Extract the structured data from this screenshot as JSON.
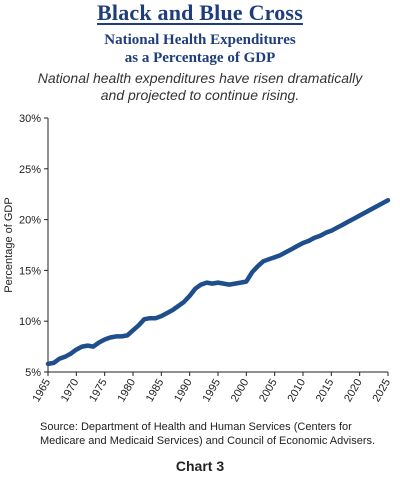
{
  "header": {
    "title": "Black and Blue Cross",
    "subtitle_line1": "National Health Expenditures",
    "subtitle_line2": "as a Percentage of GDP"
  },
  "caption": {
    "line1": "National health expenditures have risen dramatically",
    "line2": "and projected to continue rising."
  },
  "footer": {
    "source_line1": "Source: Department of Health and Human Services (Centers for",
    "source_line2": "Medicare and Medicaid Services) and Council of Economic Advisers.",
    "chart_label": "Chart 3"
  },
  "colors": {
    "title": "#1f3d7a",
    "line": "#1f4e8c"
  },
  "chart_data": {
    "type": "line",
    "title": "",
    "xlabel": "",
    "ylabel": "Percentage of GDP",
    "xlim": [
      1965,
      2025
    ],
    "ylim": [
      5,
      30
    ],
    "x_ticks": [
      1965,
      1970,
      1975,
      1980,
      1985,
      1990,
      1995,
      2000,
      2005,
      2010,
      2015,
      2020,
      2025
    ],
    "y_ticks": [
      5,
      10,
      15,
      20,
      25,
      30
    ],
    "y_tick_labels": [
      "5%",
      "10%",
      "15%",
      "20%",
      "25%",
      "30%"
    ],
    "grid": false,
    "legend": "none",
    "series": [
      {
        "x": [
          1965,
          1966,
          1967,
          1968,
          1969,
          1970,
          1971,
          1972,
          1973,
          1974,
          1975,
          1976,
          1977,
          1978,
          1979,
          1980,
          1981,
          1982,
          1983,
          1984,
          1985,
          1986,
          1987,
          1988,
          1989,
          1990,
          1991,
          1992,
          1993,
          1994,
          1995,
          1996,
          1997,
          1998,
          1999,
          2000,
          2001,
          2002,
          2003,
          2004,
          2005,
          2006,
          2007,
          2008,
          2009,
          2010,
          2011,
          2012,
          2013,
          2014,
          2015,
          2016,
          2017,
          2018,
          2019,
          2020,
          2021,
          2022,
          2023,
          2024,
          2025
        ],
        "values": [
          5.8,
          5.9,
          6.3,
          6.5,
          6.8,
          7.2,
          7.5,
          7.6,
          7.5,
          7.9,
          8.2,
          8.4,
          8.5,
          8.5,
          8.6,
          9.1,
          9.6,
          10.2,
          10.3,
          10.3,
          10.5,
          10.8,
          11.1,
          11.5,
          11.9,
          12.5,
          13.2,
          13.6,
          13.8,
          13.7,
          13.8,
          13.7,
          13.6,
          13.7,
          13.8,
          13.9,
          14.8,
          15.4,
          15.9,
          16.1,
          16.3,
          16.5,
          16.8,
          17.1,
          17.4,
          17.7,
          17.9,
          18.2,
          18.4,
          18.7,
          18.9,
          19.2,
          19.5,
          19.8,
          20.1,
          20.4,
          20.7,
          21.0,
          21.3,
          21.6,
          21.9
        ]
      }
    ]
  }
}
